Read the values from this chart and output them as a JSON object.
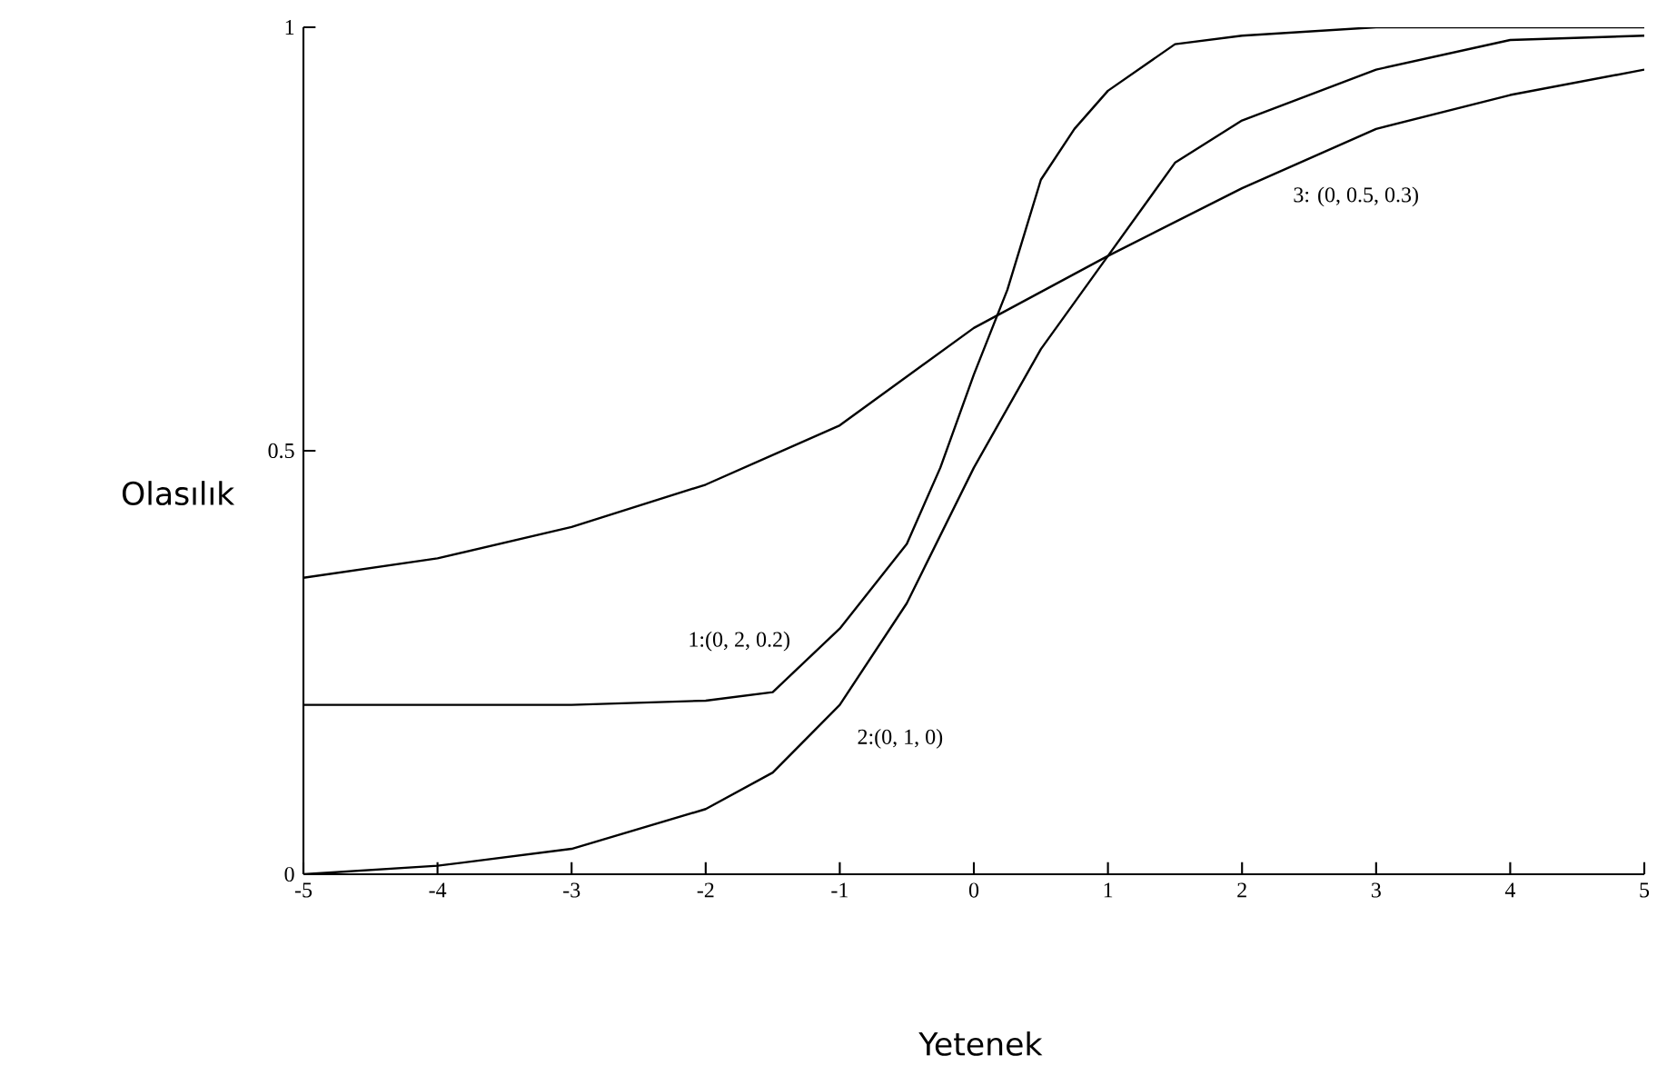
{
  "chart_data": {
    "type": "line",
    "xlabel": "Yetenek",
    "ylabel": "Olasılık",
    "xlim": [
      -5,
      5
    ],
    "ylim": [
      0,
      1
    ],
    "xticks": [
      -5,
      -4,
      -3,
      -2,
      -1,
      0,
      1,
      2,
      3,
      4,
      5
    ],
    "yticks": [
      0,
      0.5,
      1
    ],
    "grid": false,
    "marker": "none",
    "line_style": "solid",
    "series": [
      {
        "color": "#000000",
        "x": [
          -5,
          -4,
          -3,
          -2,
          -1.5,
          -1,
          -0.5,
          -0.25,
          0,
          0.25,
          0.5,
          0.75,
          1,
          1.5,
          2,
          3,
          4,
          5
        ],
        "values": [
          0.2,
          0.2,
          0.2,
          0.205,
          0.215,
          0.29,
          0.39,
          0.48,
          0.59,
          0.69,
          0.82,
          0.88,
          0.925,
          0.98,
          0.99,
          1,
          1,
          1
        ]
      },
      {
        "color": "#000000",
        "x": [
          -5,
          -4,
          -3,
          -2,
          -1.5,
          -1,
          -0.5,
          0,
          0.5,
          1,
          1.5,
          2,
          3,
          4,
          5
        ],
        "values": [
          0,
          0.01,
          0.03,
          0.077,
          0.12,
          0.2,
          0.32,
          0.48,
          0.62,
          0.73,
          0.84,
          0.89,
          0.95,
          0.985,
          0.99
        ]
      },
      {
        "color": "#000000",
        "x": [
          -5,
          -4,
          -3,
          -2,
          -1,
          0,
          1,
          2,
          3,
          4,
          5
        ],
        "values": [
          0.35,
          0.373,
          0.41,
          0.46,
          0.53,
          0.645,
          0.73,
          0.81,
          0.88,
          0.92,
          0.95
        ]
      }
    ],
    "annotations": [
      "1:(0, 2, 0.2)",
      "2:(0, 1, 0)",
      "3: (0, 0.5, 0.3)"
    ]
  }
}
